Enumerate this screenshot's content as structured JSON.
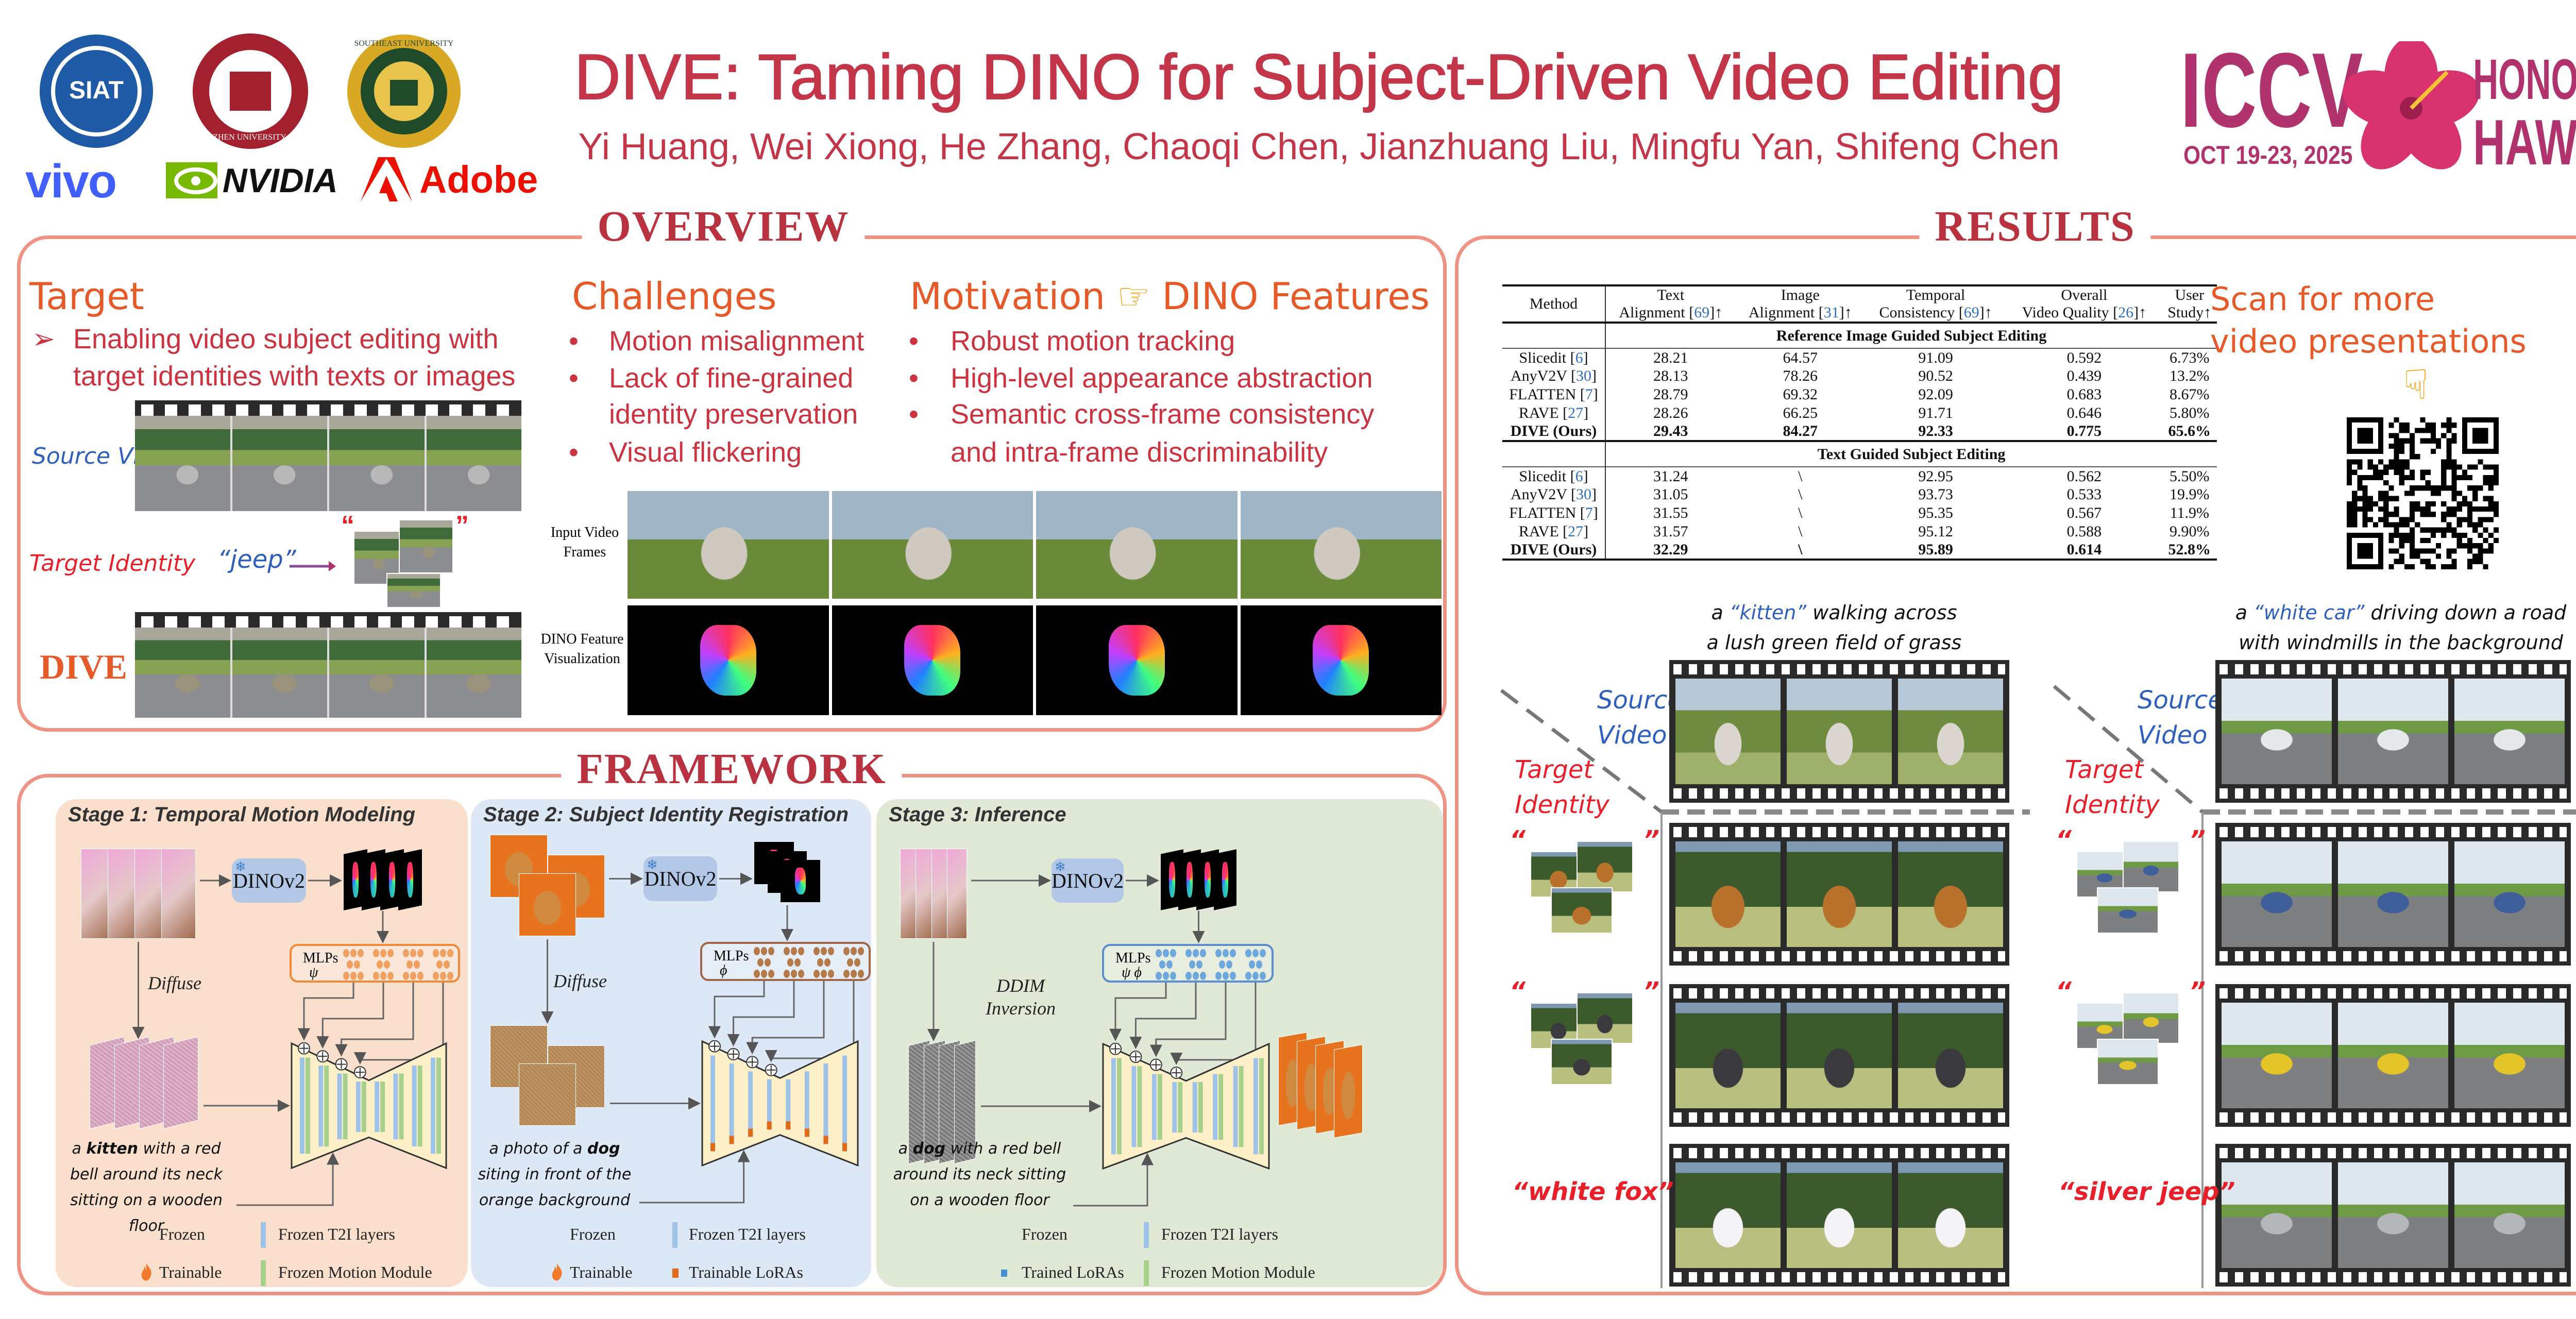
{
  "header": {
    "title": "DIVE: Taming DINO for Subject-Driven Video Editing",
    "authors": "Yi Huang, Wei Xiong, He Zhang, Chaoqi Chen, Jianzhuang Liu, Mingfu Yan, Shifeng Chen",
    "logos": {
      "siat": "SIAT",
      "shenzhen_university": "SHENZHEN UNIVERSITY · 1983",
      "southeast_university": "SOUTHEAST UNIVERSITY",
      "vivo": "vivo",
      "nvidia": "NVIDIA",
      "adobe": "Adobe"
    },
    "conference": {
      "name": "ICCV",
      "city": "HONOLULU",
      "state": "HAWAII",
      "dates": "OCT 19-23, 2025"
    }
  },
  "overview": {
    "heading": "OVERVIEW",
    "target": {
      "title": "Target",
      "bullet_icon": "arrowhead-right-icon",
      "bullet_line1": "Enabling video subject editing with",
      "bullet_line2": "target identities with texts or images",
      "source_label": "Source Video",
      "identity_label": "Target Identity",
      "text_identity": "“jeep”",
      "open_quote": "“",
      "close_quote": "”",
      "result_label": "DIVE"
    },
    "challenges": {
      "title": "Challenges",
      "items": [
        "Motion misalignment",
        "Lack of fine-grained",
        "identity preservation",
        "Visual flickering"
      ]
    },
    "motivation": {
      "title": "Motivation",
      "icon": "pointing-right-hand-icon",
      "subtitle": "DINO Features",
      "items": [
        "Robust motion tracking",
        "High-level appearance abstraction",
        "Semantic cross-frame consistency",
        "and intra-frame discriminability"
      ]
    },
    "dino_vis": {
      "input_label_1": "Input Video",
      "input_label_2": "Frames",
      "feature_label_1": "DINO Feature",
      "feature_label_2": "Visualization"
    }
  },
  "framework": {
    "heading": "FRAMEWORK",
    "stages": [
      {
        "title": "Stage 1: Temporal Motion Modeling",
        "encoder": "DINOv2",
        "mlp_label": "MLPs",
        "mlp_symbol": "ψ",
        "process_label": "Diffuse",
        "caption": {
          "pre": "a ",
          "bold": "kitten",
          "post": " with a red bell around its neck sitting on a wooden floor"
        },
        "legend": [
          "Frozen",
          "Frozen T2I layers",
          "Trainable",
          "Frozen Motion Module"
        ]
      },
      {
        "title": "Stage 2: Subject Identity Registration",
        "encoder": "DINOv2",
        "mlp_label": "MLPs",
        "mlp_symbol": "ϕ",
        "process_label": "Diffuse",
        "caption": {
          "pre": "a photo of a ",
          "bold": "dog",
          "post": " siting in front of the orange background"
        },
        "legend": [
          "Frozen",
          "Frozen T2I layers",
          "Trainable",
          "Trainable LoRAs"
        ]
      },
      {
        "title": "Stage 3: Inference",
        "encoder": "DINOv2",
        "mlp_label": "MLPs",
        "mlp_symbol": "ψ ϕ",
        "process_label": "DDIM Inversion",
        "caption": {
          "pre": "a ",
          "bold": "dog",
          "post": " with a red bell around its neck sitting on a wooden floor"
        },
        "legend": [
          "Frozen",
          "Frozen T2I layers",
          "Trained LoRAs",
          "Frozen Motion Module"
        ]
      }
    ]
  },
  "results": {
    "heading": "RESULTS",
    "table": {
      "method_header": "Method",
      "columns": [
        {
          "line1": "Text",
          "line2": "Alignment",
          "ref": "69",
          "arrow": "↑"
        },
        {
          "line1": "Image",
          "line2": "Alignment",
          "ref": "31",
          "arrow": "↑"
        },
        {
          "line1": "Temporal",
          "line2": "Consistency",
          "ref": "69",
          "arrow": "↑"
        },
        {
          "line1": "Overall",
          "line2": "Video Quality",
          "ref": "26",
          "arrow": "↑"
        },
        {
          "line1": "User",
          "line2": "Study",
          "ref": "",
          "arrow": "↑"
        }
      ],
      "sections": [
        {
          "title": "Reference Image Guided Subject Editing",
          "rows": [
            {
              "method": "Slicedit",
              "ref": "6",
              "values": [
                "28.21",
                "64.57",
                "91.09",
                "0.592",
                "6.73%"
              ]
            },
            {
              "method": "AnyV2V",
              "ref": "30",
              "values": [
                "28.13",
                "78.26",
                "90.52",
                "0.439",
                "13.2%"
              ]
            },
            {
              "method": "FLATTEN",
              "ref": "7",
              "values": [
                "28.79",
                "69.32",
                "92.09",
                "0.683",
                "8.67%"
              ]
            },
            {
              "method": "RAVE",
              "ref": "27",
              "values": [
                "28.26",
                "66.25",
                "91.71",
                "0.646",
                "5.80%"
              ]
            },
            {
              "method": "DIVE (Ours)",
              "ref": "",
              "bold": true,
              "values": [
                "29.43",
                "84.27",
                "92.33",
                "0.775",
                "65.6%"
              ]
            }
          ]
        },
        {
          "title": "Text Guided Subject Editing",
          "rows": [
            {
              "method": "Slicedit",
              "ref": "6",
              "values": [
                "31.24",
                "\\",
                "92.95",
                "0.562",
                "5.50%"
              ]
            },
            {
              "method": "AnyV2V",
              "ref": "30",
              "values": [
                "31.05",
                "\\",
                "93.73",
                "0.533",
                "19.9%"
              ]
            },
            {
              "method": "FLATTEN",
              "ref": "7",
              "values": [
                "31.55",
                "\\",
                "95.35",
                "0.567",
                "11.9%"
              ]
            },
            {
              "method": "RAVE",
              "ref": "27",
              "values": [
                "31.57",
                "\\",
                "95.12",
                "0.588",
                "9.90%"
              ]
            },
            {
              "method": "DIVE (Ours)",
              "ref": "",
              "bold": true,
              "values": [
                "32.29",
                "\\",
                "95.89",
                "0.614",
                "52.8%"
              ]
            }
          ]
        }
      ]
    },
    "qr": {
      "line1": "Scan for more",
      "line2": "video presentations",
      "icon": "pointing-down-hand-icon"
    },
    "examples": [
      {
        "caption_pre": "a ",
        "caption_highlight": "“kitten”",
        "caption_post": " walking across",
        "caption_line2": "a lush green field of grass",
        "source_label_1": "Source",
        "source_label_2": "Video",
        "identity_label_1": "Target",
        "identity_label_2": "Identity",
        "text_identity": "“white fox”",
        "open_quote": "“",
        "close_quote": "”"
      },
      {
        "caption_pre": "a ",
        "caption_highlight": "“white car”",
        "caption_post": " driving down a road",
        "caption_line2": "with windmills in the background",
        "source_label_1": "Source",
        "source_label_2": "Video",
        "identity_label_1": "Target",
        "identity_label_2": "Identity",
        "text_identity": "“silver jeep”",
        "open_quote": "“",
        "close_quote": "”"
      }
    ]
  },
  "colors": {
    "title": "#c3364a",
    "section_heading": "#b8323f",
    "panel_border": "#ef9384",
    "accent_orange": "#e65a2a",
    "source_blue": "#2d5fbf",
    "identity_red": "#e8202a",
    "stage1_bg": "#f9dfcc",
    "stage2_bg": "#dce8f5",
    "stage3_bg": "#dfe9d6",
    "conference_magenta": "#b0336e"
  }
}
